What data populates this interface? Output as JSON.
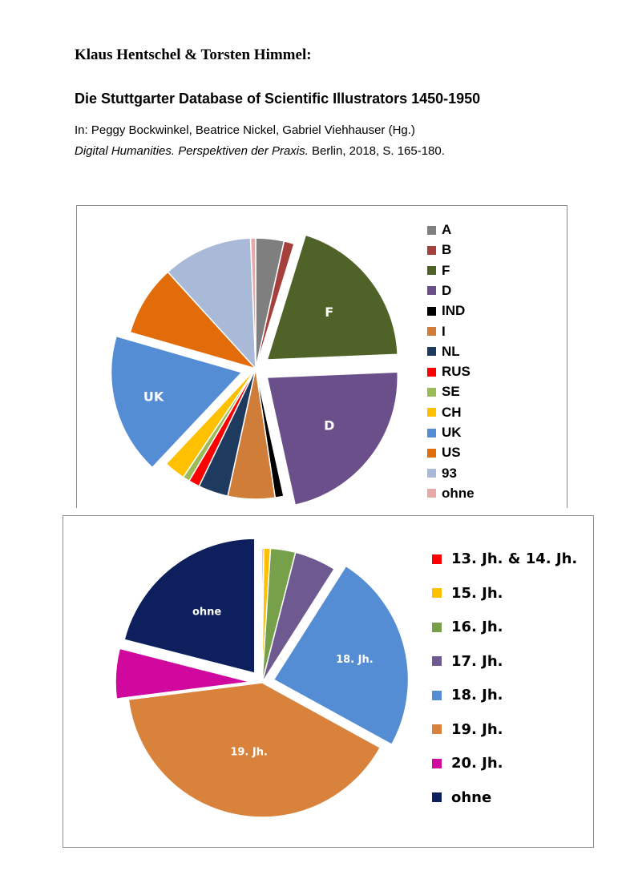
{
  "header": {
    "authors": "Klaus Hentschel & Torsten Himmel:",
    "title": "Die Stuttgarter Database of Scientific Illustrators 1450-1950",
    "citation_line1": "In: Peggy Bockwinkel, Beatrice Nickel, Gabriel Viehhauser (Hg.)",
    "citation_book_title": "Digital Humanities. Perspektiven der Praxis.",
    "citation_rest": " Berlin, 2018, S. 165-180."
  },
  "chart_data": [
    {
      "type": "pie",
      "title": "",
      "categories": [
        "A",
        "B",
        "F",
        "D",
        "IND",
        "I",
        "NL",
        "RUS",
        "SE",
        "CH",
        "UK",
        "US",
        "93",
        "ohne"
      ],
      "values": [
        3.3,
        1.2,
        18.5,
        21.0,
        1.0,
        5.5,
        3.5,
        1.3,
        0.8,
        2.5,
        16.5,
        8.3,
        10.5,
        0.6
      ],
      "exploded": [
        "F",
        "D",
        "UK"
      ],
      "data_labels": {
        "F": "F",
        "D": "D",
        "UK": "UK"
      },
      "colors": [
        "#7f7f7f",
        "#a5403c",
        "#4f6228",
        "#6a4f8a",
        "#000000",
        "#d07d3a",
        "#1f3a5f",
        "#ff0000",
        "#9bbb59",
        "#ffc000",
        "#548dd4",
        "#e36c0a",
        "#a9b9d8",
        "#e6a9a8"
      ],
      "legend_position": "right"
    },
    {
      "type": "pie",
      "title": "",
      "categories": [
        "13. Jh. & 14. Jh.",
        "15. Jh.",
        "16. Jh.",
        "17. Jh.",
        "18. Jh.",
        "19. Jh.",
        "20. Jh.",
        "ohne"
      ],
      "values": [
        0.2,
        0.8,
        3.0,
        5.0,
        24.0,
        40.0,
        6.0,
        21.0
      ],
      "exploded": [
        "18. Jh.",
        "20. Jh.",
        "ohne"
      ],
      "data_labels": {
        "18. Jh.": "18. Jh.",
        "19. Jh.": "19. Jh.",
        "ohne": "ohne"
      },
      "colors": [
        "#ff0000",
        "#ffc000",
        "#77a04a",
        "#6e5a91",
        "#548dd4",
        "#d8823c",
        "#d1089e",
        "#0d1f5c"
      ],
      "legend_position": "right"
    }
  ]
}
